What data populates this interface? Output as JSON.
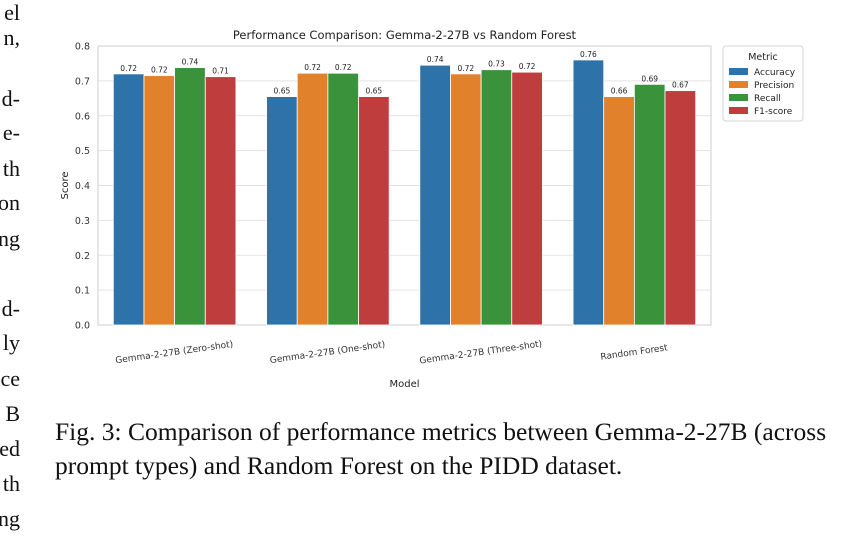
{
  "side_text": [
    "el",
    "n,",
    "",
    "d-",
    "e-",
    "th",
    "on",
    "ng",
    "",
    "d-",
    "ly",
    "ce",
    "B",
    "ed",
    "th",
    "ng"
  ],
  "chart_data": {
    "type": "bar",
    "title": "Performance Comparison: Gemma-2-27B vs Random Forest",
    "xlabel": "Model",
    "ylabel": "Score",
    "ylim": [
      0,
      0.8
    ],
    "yticks": [
      0.0,
      0.1,
      0.2,
      0.3,
      0.4,
      0.5,
      0.6,
      0.7,
      0.8
    ],
    "grid": true,
    "legend": {
      "title": "Metric",
      "placement": "outside-right"
    },
    "categories": [
      "Gemma-2-27B (Zero-shot)",
      "Gemma-2-27B (One-shot)",
      "Gemma-2-27B (Three-shot)",
      "Random Forest"
    ],
    "series": [
      {
        "name": "Accuracy",
        "color": "#2d72a8",
        "values": [
          0.72,
          0.655,
          0.745,
          0.76
        ],
        "labels": [
          "0.72",
          "0.65",
          "0.74",
          "0.76"
        ]
      },
      {
        "name": "Precision",
        "color": "#e1812c",
        "values": [
          0.715,
          0.722,
          0.72,
          0.655
        ],
        "labels": [
          "0.72",
          "0.72",
          "0.72",
          "0.66"
        ]
      },
      {
        "name": "Recall",
        "color": "#3a923a",
        "values": [
          0.738,
          0.722,
          0.732,
          0.69
        ],
        "labels": [
          "0.74",
          "0.72",
          "0.73",
          "0.69"
        ]
      },
      {
        "name": "F1-score",
        "color": "#c03d3e",
        "values": [
          0.712,
          0.655,
          0.725,
          0.672
        ],
        "labels": [
          "0.71",
          "0.65",
          "0.72",
          "0.67"
        ]
      }
    ]
  },
  "caption": "Fig. 3: Comparison of performance metrics between Gemma-2-27B (across prompt types) and Random Forest on the PIDD dataset."
}
